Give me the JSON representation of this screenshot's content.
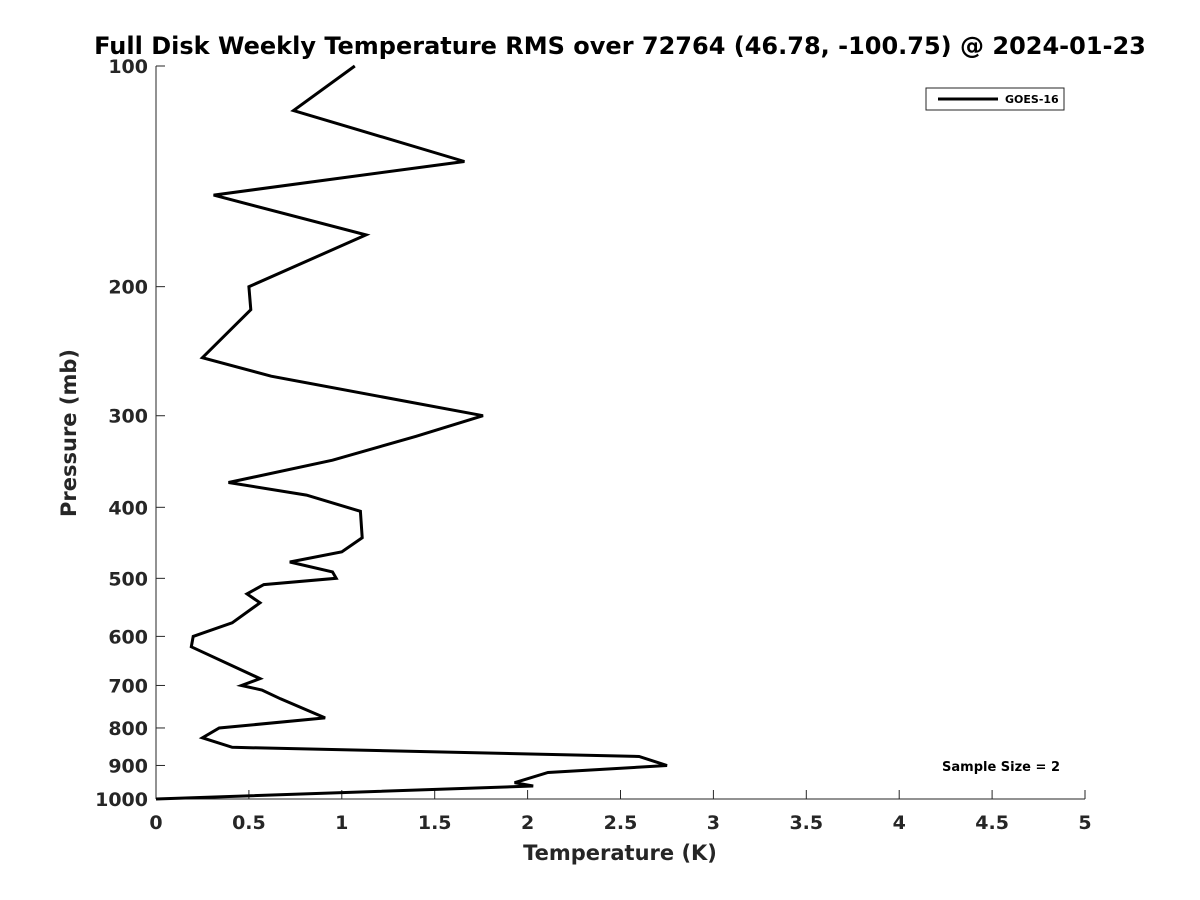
{
  "chart_data": {
    "type": "line",
    "title": "Full Disk Weekly Temperature RMS over 72764 (46.78, -100.75) @ 2024-01-23",
    "xlabel": "Temperature (K)",
    "ylabel": "Pressure (mb)",
    "xlim": [
      0,
      5
    ],
    "ylim": [
      1000,
      100
    ],
    "y_scale": "log",
    "y_reversed": true,
    "x_ticks": [
      0,
      0.5,
      1,
      1.5,
      2,
      2.5,
      3,
      3.5,
      4,
      4.5,
      5
    ],
    "x_tick_labels": [
      "0",
      "0.5",
      "1",
      "1.5",
      "2",
      "2.5",
      "3",
      "3.5",
      "4",
      "4.5",
      "5"
    ],
    "y_ticks": [
      100,
      200,
      300,
      400,
      500,
      600,
      700,
      800,
      900,
      1000
    ],
    "y_tick_labels": [
      "100",
      "200",
      "300",
      "400",
      "500",
      "600",
      "700",
      "800",
      "900",
      "1000"
    ],
    "grid": false,
    "legend_position": "top-right",
    "annotation": "Sample Size = 2",
    "series": [
      {
        "name": "GOES-16",
        "color": "#000000",
        "points": [
          {
            "x": 1.07,
            "p": 100
          },
          {
            "x": 0.74,
            "p": 115
          },
          {
            "x": 1.66,
            "p": 135
          },
          {
            "x": 0.31,
            "p": 150
          },
          {
            "x": 1.13,
            "p": 170
          },
          {
            "x": 0.5,
            "p": 200
          },
          {
            "x": 0.51,
            "p": 215
          },
          {
            "x": 0.25,
            "p": 250
          },
          {
            "x": 0.62,
            "p": 265
          },
          {
            "x": 1.76,
            "p": 300
          },
          {
            "x": 1.4,
            "p": 320
          },
          {
            "x": 0.95,
            "p": 345
          },
          {
            "x": 0.39,
            "p": 370
          },
          {
            "x": 0.81,
            "p": 385
          },
          {
            "x": 1.1,
            "p": 405
          },
          {
            "x": 1.11,
            "p": 440
          },
          {
            "x": 1.0,
            "p": 460
          },
          {
            "x": 0.72,
            "p": 475
          },
          {
            "x": 0.95,
            "p": 490
          },
          {
            "x": 0.97,
            "p": 500
          },
          {
            "x": 0.58,
            "p": 510
          },
          {
            "x": 0.49,
            "p": 525
          },
          {
            "x": 0.56,
            "p": 540
          },
          {
            "x": 0.41,
            "p": 575
          },
          {
            "x": 0.2,
            "p": 600
          },
          {
            "x": 0.19,
            "p": 620
          },
          {
            "x": 0.56,
            "p": 685
          },
          {
            "x": 0.46,
            "p": 700
          },
          {
            "x": 0.57,
            "p": 710
          },
          {
            "x": 0.67,
            "p": 730
          },
          {
            "x": 0.91,
            "p": 775
          },
          {
            "x": 0.34,
            "p": 800
          },
          {
            "x": 0.25,
            "p": 825
          },
          {
            "x": 0.41,
            "p": 850
          },
          {
            "x": 2.6,
            "p": 875
          },
          {
            "x": 2.75,
            "p": 900
          },
          {
            "x": 2.11,
            "p": 920
          },
          {
            "x": 1.93,
            "p": 950
          },
          {
            "x": 2.03,
            "p": 960
          },
          {
            "x": 0.0,
            "p": 1000
          }
        ]
      }
    ]
  }
}
